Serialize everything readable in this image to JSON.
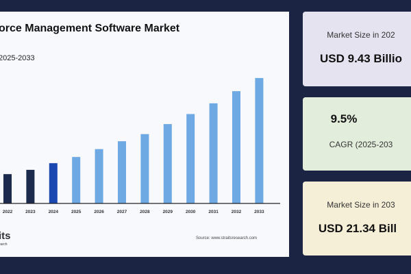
{
  "chart_data": {
    "type": "bar",
    "title": "orce Management Software Market",
    "subtitle": "2025-2033",
    "categories": [
      "2022",
      "2023",
      "2024",
      "2025",
      "2026",
      "2027",
      "2028",
      "2029",
      "2030",
      "2031",
      "2032",
      "2033"
    ],
    "values": [
      7.9,
      8.5,
      9.43,
      10.3,
      11.4,
      12.5,
      13.5,
      14.9,
      16.3,
      17.8,
      19.5,
      21.34
    ],
    "ylim": [
      3.8,
      22
    ],
    "xlabel": "",
    "ylabel": "",
    "colors": {
      "historic": "#1b2a4d",
      "base": "#1848b0",
      "forecast": "#6fa9e3"
    }
  },
  "footer": {
    "logo": "its",
    "logo_sub": "earch",
    "source": "Source: www.straitsresearch.com"
  },
  "cards": [
    {
      "label": "Market Size in 202",
      "value": "USD 9.43 Billio"
    },
    {
      "value": "9.5%",
      "label": "CAGR (2025-203"
    },
    {
      "label": "Market Size in 203",
      "value": "USD 21.34 Bill"
    }
  ]
}
